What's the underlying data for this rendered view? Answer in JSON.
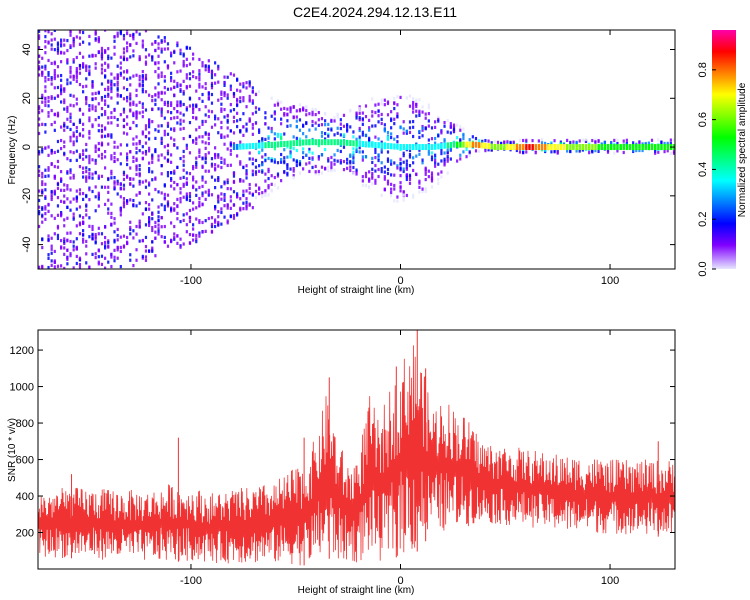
{
  "title": "C2E4.2024.294.12.13.E11",
  "colors": {
    "snr_line": "#f03232",
    "colorbar": [
      "#ff00aa",
      "#ff0000",
      "#ff8000",
      "#ffff00",
      "#80ff00",
      "#00ff00",
      "#00ff80",
      "#00ffff",
      "#0080ff",
      "#0000ff",
      "#8000ff",
      "#e6e6ff"
    ]
  },
  "chart_data": [
    {
      "type": "heatmap",
      "xlabel": "Height of straight line (km)",
      "ylabel": "Frequency (Hz)",
      "xlim": [
        -173,
        131
      ],
      "ylim": [
        -50,
        48
      ],
      "x_ticks": [
        "-100",
        "0",
        "100"
      ],
      "x_tick_values": [
        -100,
        0,
        100
      ],
      "y_ticks": [
        "-40",
        "-20",
        "0",
        "20",
        "40"
      ],
      "y_tick_values": [
        -40,
        -20,
        0,
        20,
        40
      ],
      "colorbar_label": "Normalized spectral amplitude",
      "colorbar_range": [
        0,
        0.96
      ],
      "colorbar_ticks": [
        "0.0",
        "0.2",
        "0.4",
        "0.6",
        "0.8"
      ],
      "colorbar_tick_values": [
        0,
        0.2,
        0.4,
        0.6,
        0.8
      ],
      "ridge_profile": {
        "x": [
          -173,
          -130,
          -115,
          -100,
          -80,
          -60,
          -45,
          -30,
          -15,
          0,
          15,
          25,
          35,
          45,
          60,
          75,
          90,
          110,
          131
        ],
        "freq": [
          0,
          0,
          1,
          0,
          0,
          1,
          2,
          2,
          1,
          0,
          0,
          1,
          1,
          0,
          0,
          0,
          0,
          0,
          0
        ],
        "peak_amplitude": [
          0.05,
          0.12,
          0.25,
          0.12,
          0.3,
          0.45,
          0.5,
          0.5,
          0.35,
          0.4,
          0.35,
          0.45,
          0.85,
          0.6,
          0.9,
          0.7,
          0.6,
          0.55,
          0.5
        ],
        "scatter_halfwidth": [
          50,
          50,
          45,
          40,
          30,
          20,
          15,
          12,
          20,
          25,
          18,
          10,
          3,
          2,
          3,
          3,
          3,
          3,
          3
        ]
      }
    },
    {
      "type": "line",
      "xlabel": "Height of straight line (km)",
      "ylabel": "SNR (10 * v/v)",
      "xlim": [
        -173,
        131
      ],
      "ylim": [
        0,
        1310
      ],
      "x_ticks": [
        "-100",
        "0",
        "100"
      ],
      "x_tick_values": [
        -100,
        0,
        100
      ],
      "y_ticks": [
        "200",
        "400",
        "600",
        "800",
        "1000",
        "1200"
      ],
      "y_tick_values": [
        200,
        400,
        600,
        800,
        1000,
        1200
      ],
      "x": [
        -173,
        -160,
        -140,
        -120,
        -110,
        -100,
        -90,
        -80,
        -70,
        -60,
        -50,
        -45,
        -40,
        -35,
        -30,
        -25,
        -20,
        -15,
        -10,
        -5,
        0,
        5,
        10,
        15,
        20,
        25,
        30,
        40,
        50,
        60,
        70,
        80,
        90,
        100,
        110,
        120,
        131
      ],
      "y_low": [
        60,
        60,
        50,
        40,
        40,
        40,
        30,
        30,
        30,
        30,
        20,
        20,
        40,
        60,
        40,
        40,
        30,
        80,
        40,
        40,
        80,
        60,
        120,
        200,
        200,
        220,
        230,
        250,
        240,
        230,
        220,
        200,
        200,
        190,
        190,
        180,
        170
      ],
      "y_high": [
        420,
        450,
        440,
        430,
        470,
        450,
        420,
        440,
        450,
        480,
        560,
        590,
        750,
        980,
        720,
        580,
        640,
        960,
        820,
        1000,
        1100,
        1300,
        1150,
        900,
        950,
        900,
        850,
        700,
        680,
        660,
        640,
        620,
        620,
        600,
        600,
        600,
        600
      ],
      "spikes": [
        {
          "x": -157,
          "y": 520
        },
        {
          "x": -106,
          "y": 720
        },
        {
          "x": -46,
          "y": 720
        },
        {
          "x": -34,
          "y": 1050
        },
        {
          "x": -2,
          "y": 1110
        },
        {
          "x": 8,
          "y": 1310
        },
        {
          "x": 12,
          "y": 1100
        },
        {
          "x": 123,
          "y": 700
        }
      ]
    }
  ]
}
